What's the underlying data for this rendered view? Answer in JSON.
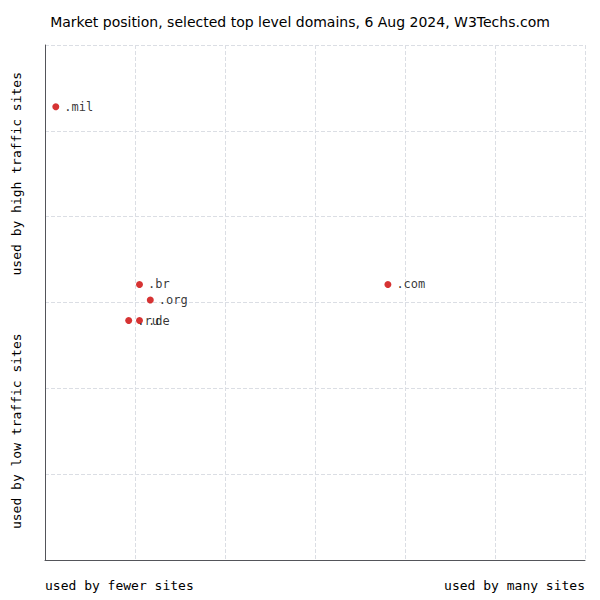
{
  "chart_data": {
    "type": "scatter",
    "title": "Market position, selected top level domains, 6 Aug 2024, W3Techs.com",
    "xlabel_left": "used by fewer sites",
    "xlabel_right": "used by many sites",
    "ylabel_bottom": "used by low traffic sites",
    "ylabel_top": "used by high traffic sites",
    "labels": [
      ".mil",
      ".br",
      ".org",
      ".ru",
      ".de",
      ".com"
    ],
    "x": [
      0.02,
      0.175,
      0.195,
      0.155,
      0.175,
      0.635
    ],
    "values": [
      0.88,
      0.535,
      0.505,
      0.465,
      0.465,
      0.535
    ],
    "color": "#cc0000",
    "xlim": [
      0,
      1
    ],
    "ylim": [
      0,
      1
    ],
    "xticks": [
      0,
      0.16666666666666666,
      0.3333333333333333,
      0.5,
      0.6666666666666666,
      0.8333333333333333,
      1
    ],
    "yticks": [
      0,
      0.16666666666666666,
      0.3333333333333333,
      0.5,
      0.6666666666666666,
      0.8333333333333333,
      1
    ],
    "grid": true,
    "tick_labels": false
  }
}
